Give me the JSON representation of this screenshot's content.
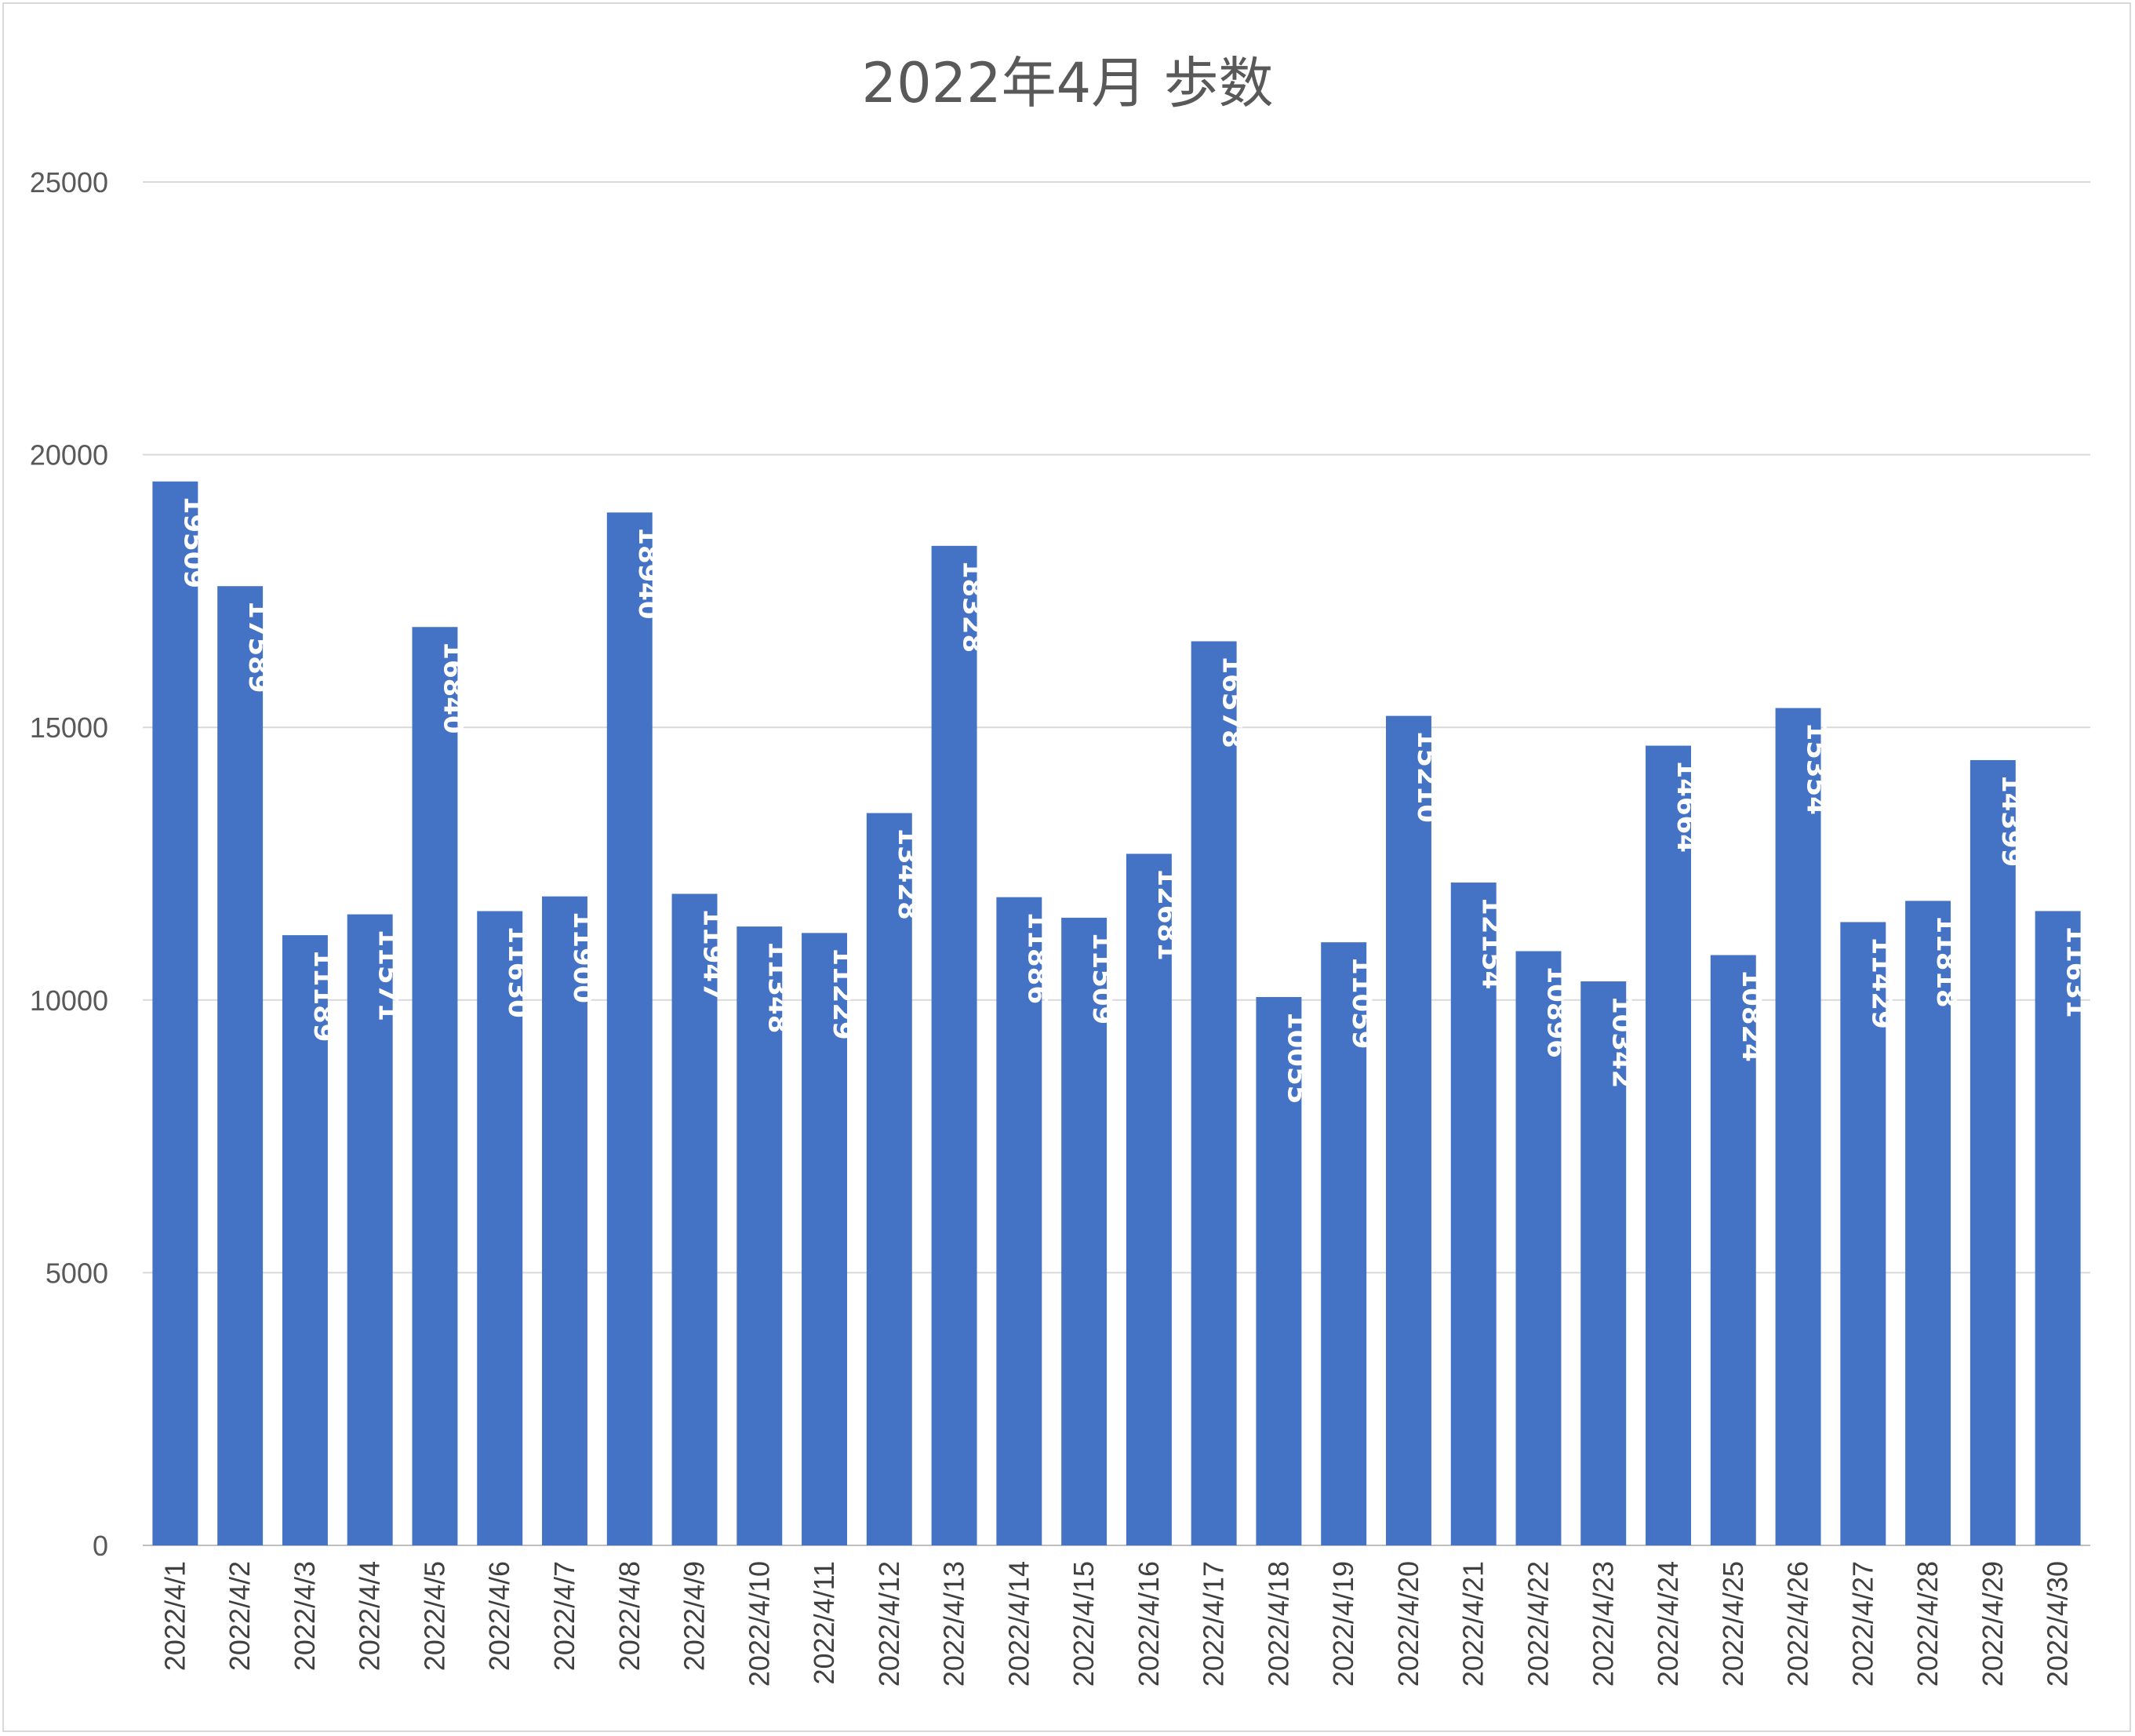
{
  "chart_data": {
    "type": "bar",
    "title": "2022年4月 歩数",
    "xlabel": "",
    "ylabel": "",
    "ylim": [
      0,
      25000
    ],
    "yticks": [
      0,
      5000,
      10000,
      15000,
      20000,
      25000
    ],
    "grid": true,
    "legend": "none",
    "bar_color": "#4472C4",
    "categories": [
      "2022/4/1",
      "2022/4/2",
      "2022/4/3",
      "2022/4/4",
      "2022/4/5",
      "2022/4/6",
      "2022/4/7",
      "2022/4/8",
      "2022/4/9",
      "2022/4/10",
      "2022/4/11",
      "2022/4/12",
      "2022/4/13",
      "2022/4/14",
      "2022/4/15",
      "2022/4/16",
      "2022/4/17",
      "2022/4/18",
      "2022/4/19",
      "2022/4/20",
      "2022/4/21",
      "2022/4/22",
      "2022/4/23",
      "2022/4/24",
      "2022/4/25",
      "2022/4/26",
      "2022/4/27",
      "2022/4/28",
      "2022/4/29",
      "2022/4/30"
    ],
    "values": [
      19509,
      17589,
      11189,
      11571,
      16840,
      11630,
      11900,
      18940,
      11947,
      11348,
      11229,
      13428,
      18328,
      11886,
      11509,
      12681,
      16578,
      10055,
      11059,
      15210,
      12154,
      10896,
      10342,
      14664,
      10824,
      15354,
      11429,
      11818,
      14399,
      11631
    ]
  }
}
